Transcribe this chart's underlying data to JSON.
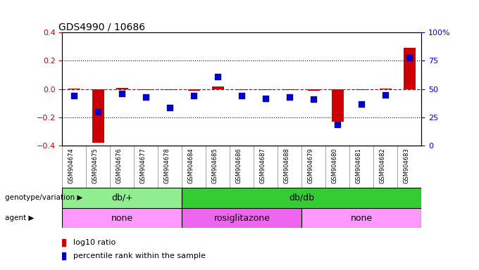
{
  "title": "GDS4990 / 10686",
  "samples": [
    "GSM904674",
    "GSM904675",
    "GSM904676",
    "GSM904677",
    "GSM904678",
    "GSM904684",
    "GSM904685",
    "GSM904686",
    "GSM904687",
    "GSM904688",
    "GSM904679",
    "GSM904680",
    "GSM904681",
    "GSM904682",
    "GSM904683"
  ],
  "log10_ratio": [
    0.005,
    -0.38,
    0.01,
    -0.005,
    -0.005,
    -0.01,
    0.02,
    -0.005,
    -0.005,
    -0.005,
    -0.01,
    -0.23,
    -0.005,
    0.005,
    0.29
  ],
  "percentile_rank": [
    44,
    30,
    46,
    43,
    34,
    44,
    61,
    44,
    42,
    43,
    41,
    19,
    37,
    45,
    78
  ],
  "genotype_groups": [
    {
      "label": "db/+",
      "start": 0,
      "end": 5,
      "color": "#90EE90"
    },
    {
      "label": "db/db",
      "start": 5,
      "end": 15,
      "color": "#33CC33"
    }
  ],
  "agent_groups": [
    {
      "label": "none",
      "start": 0,
      "end": 5,
      "color": "#FF99FF"
    },
    {
      "label": "rosiglitazone",
      "start": 5,
      "end": 10,
      "color": "#EE66EE"
    },
    {
      "label": "none",
      "start": 10,
      "end": 15,
      "color": "#FF99FF"
    }
  ],
  "bar_color": "#CC0000",
  "dot_color": "#0000CC",
  "ylim_left": [
    -0.4,
    0.4
  ],
  "ylim_right": [
    0,
    100
  ],
  "yticks_left": [
    -0.4,
    -0.2,
    0.0,
    0.2,
    0.4
  ],
  "yticks_right": [
    0,
    25,
    50,
    75,
    100
  ],
  "ytick_labels_right": [
    "0",
    "25",
    "50",
    "75",
    "100%"
  ],
  "legend_items": [
    {
      "label": "log10 ratio",
      "color": "#CC0000"
    },
    {
      "label": "percentile rank within the sample",
      "color": "#0000CC"
    }
  ]
}
